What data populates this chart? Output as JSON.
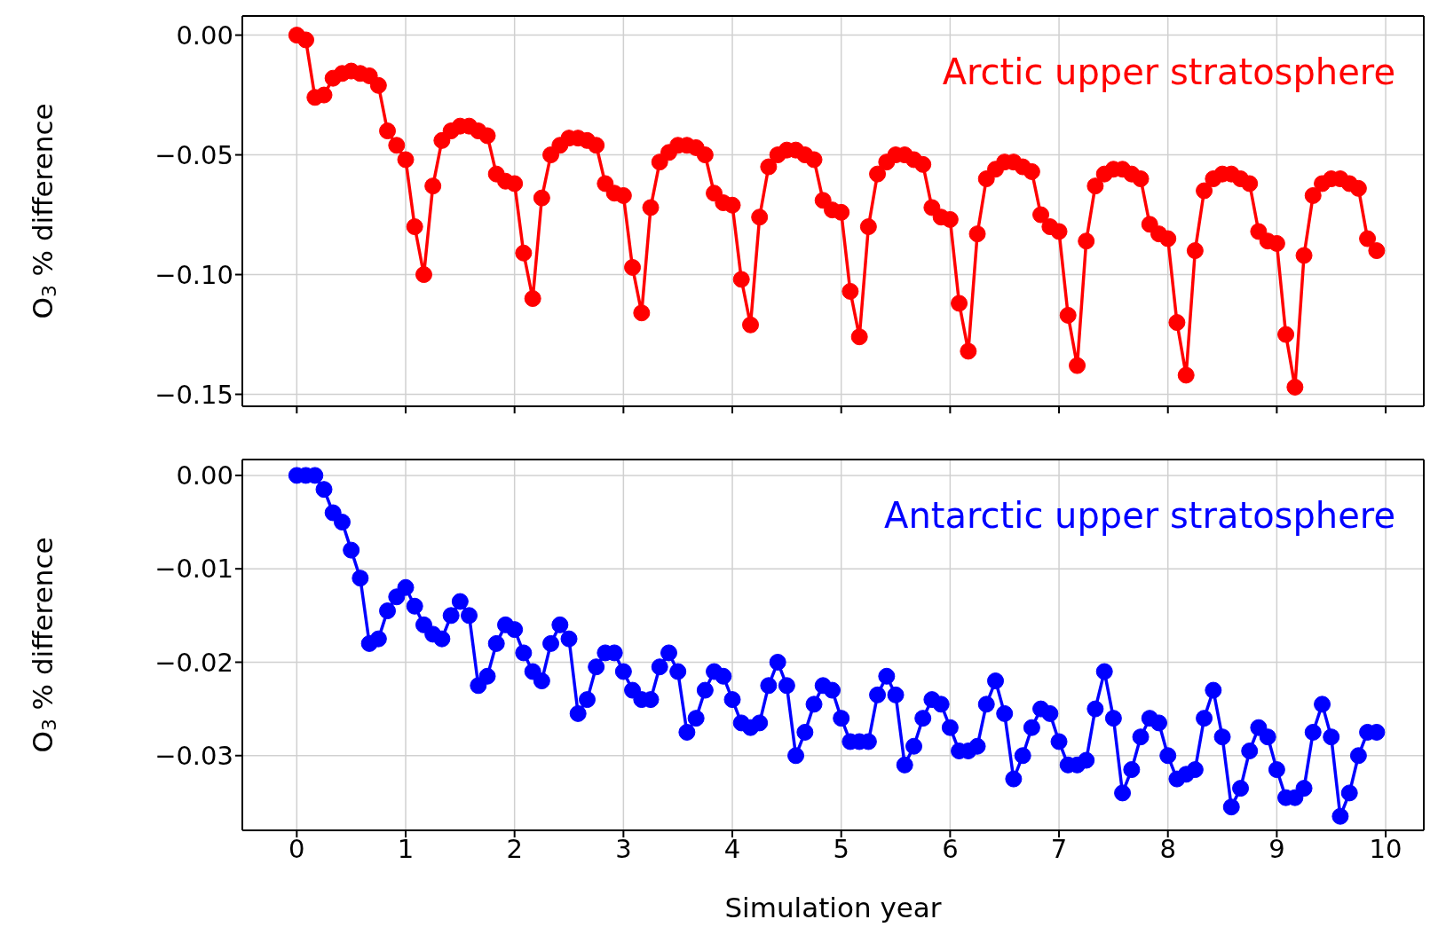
{
  "chart_data": [
    {
      "type": "line",
      "ylabel": "O$_{3}$ % difference",
      "annotations": [
        "Arctic upper stratosphere"
      ],
      "color": "#ff0000",
      "marker": "circle",
      "grid": true,
      "tick_labels": "y",
      "xlim": [
        -0.5,
        10.35
      ],
      "xticks": [
        0,
        1,
        2,
        3,
        4,
        5,
        6,
        7,
        8,
        9,
        10
      ],
      "ylim": [
        -0.155,
        0.008
      ],
      "yticks": [
        {
          "value": 0,
          "label": "0.00"
        },
        {
          "value": -0.05,
          "label": "−0.05"
        },
        {
          "value": -0.1,
          "label": "−0.10"
        },
        {
          "value": -0.15,
          "label": "−0.15"
        }
      ],
      "x": [
        0,
        0.083,
        0.167,
        0.25,
        0.333,
        0.417,
        0.5,
        0.583,
        0.667,
        0.75,
        0.833,
        0.917,
        1,
        1.083,
        1.167,
        1.25,
        1.333,
        1.417,
        1.5,
        1.583,
        1.667,
        1.75,
        1.833,
        1.917,
        2,
        2.083,
        2.167,
        2.25,
        2.333,
        2.417,
        2.5,
        2.583,
        2.667,
        2.75,
        2.833,
        2.917,
        3,
        3.083,
        3.167,
        3.25,
        3.333,
        3.417,
        3.5,
        3.583,
        3.667,
        3.75,
        3.833,
        3.917,
        4,
        4.083,
        4.167,
        4.25,
        4.333,
        4.417,
        4.5,
        4.583,
        4.667,
        4.75,
        4.833,
        4.917,
        5,
        5.083,
        5.167,
        5.25,
        5.333,
        5.417,
        5.5,
        5.583,
        5.667,
        5.75,
        5.833,
        5.917,
        6,
        6.083,
        6.167,
        6.25,
        6.333,
        6.417,
        6.5,
        6.583,
        6.667,
        6.75,
        6.833,
        6.917,
        7,
        7.083,
        7.167,
        7.25,
        7.333,
        7.417,
        7.5,
        7.583,
        7.667,
        7.75,
        7.833,
        7.917,
        8,
        8.083,
        8.167,
        8.25,
        8.333,
        8.417,
        8.5,
        8.583,
        8.667,
        8.75,
        8.833,
        8.917,
        9,
        9.083,
        9.167,
        9.25,
        9.333,
        9.417,
        9.5,
        9.583,
        9.667,
        9.75,
        9.833,
        9.917
      ],
      "values": [
        0,
        -0.002,
        -0.026,
        -0.025,
        -0.018,
        -0.016,
        -0.015,
        -0.016,
        -0.017,
        -0.021,
        -0.04,
        -0.046,
        -0.052,
        -0.08,
        -0.1,
        -0.063,
        -0.044,
        -0.04,
        -0.038,
        -0.038,
        -0.04,
        -0.042,
        -0.058,
        -0.061,
        -0.062,
        -0.091,
        -0.11,
        -0.068,
        -0.05,
        -0.046,
        -0.043,
        -0.043,
        -0.044,
        -0.046,
        -0.062,
        -0.066,
        -0.067,
        -0.097,
        -0.116,
        -0.072,
        -0.053,
        -0.049,
        -0.046,
        -0.046,
        -0.047,
        -0.05,
        -0.066,
        -0.07,
        -0.071,
        -0.102,
        -0.121,
        -0.076,
        -0.055,
        -0.05,
        -0.048,
        -0.048,
        -0.05,
        -0.052,
        -0.069,
        -0.073,
        -0.074,
        -0.107,
        -0.126,
        -0.08,
        -0.058,
        -0.053,
        -0.05,
        -0.05,
        -0.052,
        -0.054,
        -0.072,
        -0.076,
        -0.077,
        -0.112,
        -0.132,
        -0.083,
        -0.06,
        -0.056,
        -0.053,
        -0.053,
        -0.055,
        -0.057,
        -0.075,
        -0.08,
        -0.082,
        -0.117,
        -0.138,
        -0.086,
        -0.063,
        -0.058,
        -0.056,
        -0.056,
        -0.058,
        -0.06,
        -0.079,
        -0.083,
        -0.085,
        -0.12,
        -0.142,
        -0.09,
        -0.065,
        -0.06,
        -0.058,
        -0.058,
        -0.06,
        -0.062,
        -0.082,
        -0.086,
        -0.087,
        -0.125,
        -0.147,
        -0.092,
        -0.067,
        -0.062,
        -0.06,
        -0.06,
        -0.062,
        -0.064,
        -0.085,
        -0.09
      ]
    },
    {
      "type": "line",
      "xlabel": "Simulation year",
      "ylabel": "O$_{3}$ % difference",
      "annotations": [
        "Antarctic upper stratosphere"
      ],
      "color": "#0000ff",
      "marker": "circle",
      "grid": true,
      "xlim": [
        -0.5,
        10.35
      ],
      "xticks": [
        0,
        1,
        2,
        3,
        4,
        5,
        6,
        7,
        8,
        9,
        10
      ],
      "ylim": [
        -0.038,
        0.0017
      ],
      "yticks": [
        {
          "value": 0,
          "label": "0.00"
        },
        {
          "value": -0.01,
          "label": "−0.01"
        },
        {
          "value": -0.02,
          "label": "−0.02"
        },
        {
          "value": -0.03,
          "label": "−0.03"
        }
      ],
      "x": [
        0,
        0.083,
        0.167,
        0.25,
        0.333,
        0.417,
        0.5,
        0.583,
        0.667,
        0.75,
        0.833,
        0.917,
        1,
        1.083,
        1.167,
        1.25,
        1.333,
        1.417,
        1.5,
        1.583,
        1.667,
        1.75,
        1.833,
        1.917,
        2,
        2.083,
        2.167,
        2.25,
        2.333,
        2.417,
        2.5,
        2.583,
        2.667,
        2.75,
        2.833,
        2.917,
        3,
        3.083,
        3.167,
        3.25,
        3.333,
        3.417,
        3.5,
        3.583,
        3.667,
        3.75,
        3.833,
        3.917,
        4,
        4.083,
        4.167,
        4.25,
        4.333,
        4.417,
        4.5,
        4.583,
        4.667,
        4.75,
        4.833,
        4.917,
        5,
        5.083,
        5.167,
        5.25,
        5.333,
        5.417,
        5.5,
        5.583,
        5.667,
        5.75,
        5.833,
        5.917,
        6,
        6.083,
        6.167,
        6.25,
        6.333,
        6.417,
        6.5,
        6.583,
        6.667,
        6.75,
        6.833,
        6.917,
        7,
        7.083,
        7.167,
        7.25,
        7.333,
        7.417,
        7.5,
        7.583,
        7.667,
        7.75,
        7.833,
        7.917,
        8,
        8.083,
        8.167,
        8.25,
        8.333,
        8.417,
        8.5,
        8.583,
        8.667,
        8.75,
        8.833,
        8.917,
        9,
        9.083,
        9.167,
        9.25,
        9.333,
        9.417,
        9.5,
        9.583,
        9.667,
        9.75,
        9.833,
        9.917
      ],
      "values": [
        0,
        0,
        0,
        -0.0015,
        -0.004,
        -0.005,
        -0.008,
        -0.011,
        -0.018,
        -0.0175,
        -0.0145,
        -0.013,
        -0.012,
        -0.014,
        -0.016,
        -0.017,
        -0.0175,
        -0.015,
        -0.0135,
        -0.015,
        -0.0225,
        -0.0215,
        -0.018,
        -0.016,
        -0.0165,
        -0.019,
        -0.021,
        -0.022,
        -0.018,
        -0.016,
        -0.0175,
        -0.0255,
        -0.024,
        -0.0205,
        -0.019,
        -0.019,
        -0.021,
        -0.023,
        -0.024,
        -0.024,
        -0.0205,
        -0.019,
        -0.021,
        -0.0275,
        -0.026,
        -0.023,
        -0.021,
        -0.0215,
        -0.024,
        -0.0265,
        -0.027,
        -0.0265,
        -0.0225,
        -0.02,
        -0.0225,
        -0.03,
        -0.0275,
        -0.0245,
        -0.0225,
        -0.023,
        -0.026,
        -0.0285,
        -0.0285,
        -0.0285,
        -0.0235,
        -0.0215,
        -0.0235,
        -0.031,
        -0.029,
        -0.026,
        -0.024,
        -0.0245,
        -0.027,
        -0.0295,
        -0.0295,
        -0.029,
        -0.0245,
        -0.022,
        -0.0255,
        -0.0325,
        -0.03,
        -0.027,
        -0.025,
        -0.0255,
        -0.0285,
        -0.031,
        -0.031,
        -0.0305,
        -0.025,
        -0.021,
        -0.026,
        -0.034,
        -0.0315,
        -0.028,
        -0.026,
        -0.0265,
        -0.03,
        -0.0325,
        -0.032,
        -0.0315,
        -0.026,
        -0.023,
        -0.028,
        -0.0355,
        -0.0335,
        -0.0295,
        -0.027,
        -0.028,
        -0.0315,
        -0.0345,
        -0.0345,
        -0.0335,
        -0.0275,
        -0.0245,
        -0.028,
        -0.0365,
        -0.034,
        -0.03,
        -0.0275,
        -0.0275
      ]
    }
  ]
}
